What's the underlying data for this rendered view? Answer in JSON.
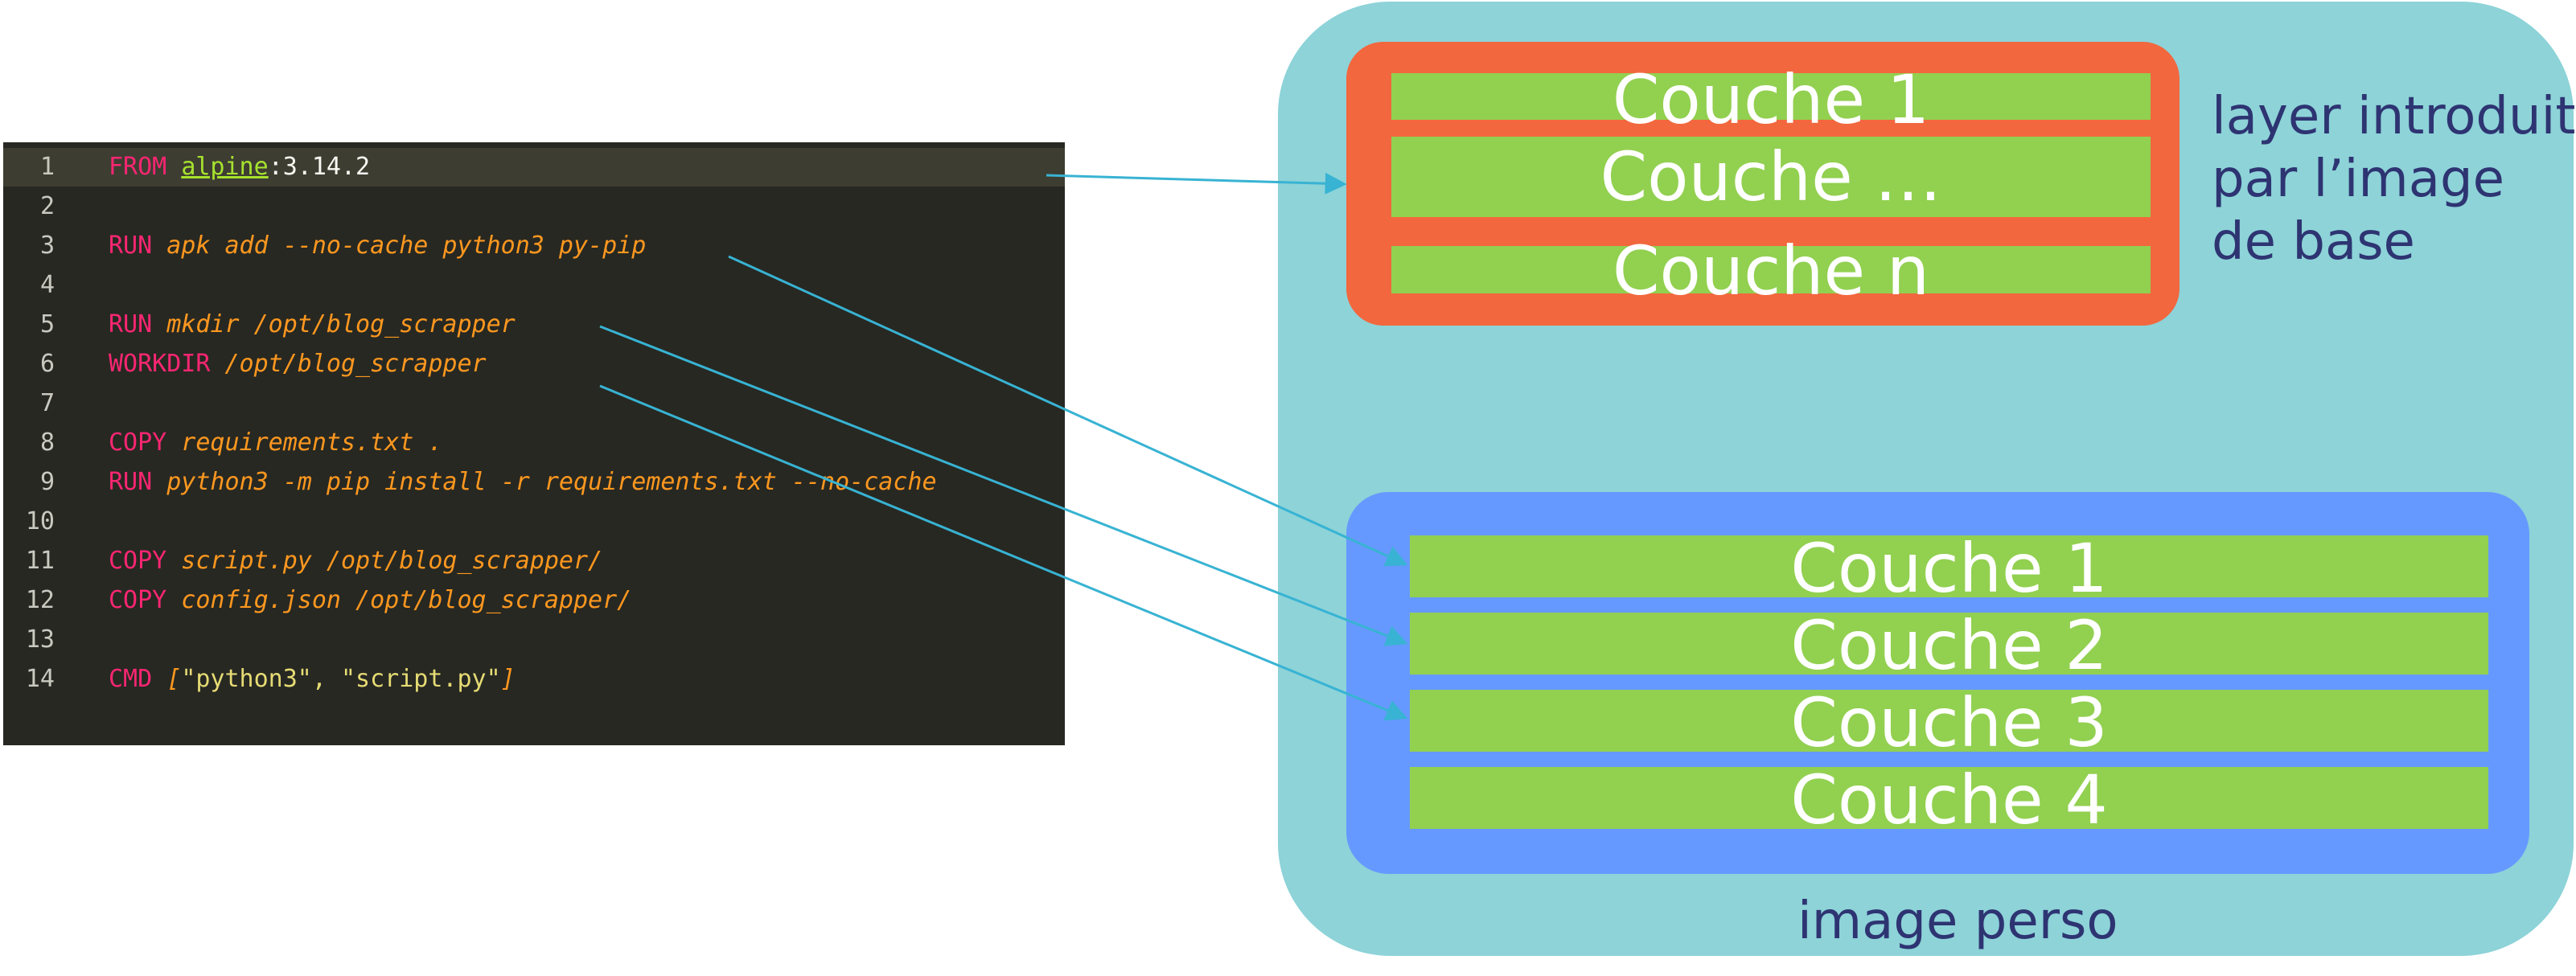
{
  "dockerfile": {
    "lines": [
      {
        "num": "1",
        "tokens": [
          {
            "t": "FROM",
            "c": "kw"
          },
          {
            "t": " ",
            "c": "plain"
          },
          {
            "t": "alpine",
            "c": "img"
          },
          {
            "t": ":3.14.2",
            "c": "plain"
          }
        ]
      },
      {
        "num": "2",
        "tokens": []
      },
      {
        "num": "3",
        "tokens": [
          {
            "t": "RUN",
            "c": "kw"
          },
          {
            "t": " apk add --no-cache python3 py-pip",
            "c": "arg"
          }
        ]
      },
      {
        "num": "4",
        "tokens": []
      },
      {
        "num": "5",
        "tokens": [
          {
            "t": "RUN",
            "c": "kw"
          },
          {
            "t": " mkdir /opt/blog_scrapper",
            "c": "arg"
          }
        ]
      },
      {
        "num": "6",
        "tokens": [
          {
            "t": "WORKDIR",
            "c": "kw"
          },
          {
            "t": " /opt/blog_scrapper",
            "c": "arg"
          }
        ]
      },
      {
        "num": "7",
        "tokens": []
      },
      {
        "num": "8",
        "tokens": [
          {
            "t": "COPY",
            "c": "kw"
          },
          {
            "t": " requirements.txt .",
            "c": "arg"
          }
        ]
      },
      {
        "num": "9",
        "tokens": [
          {
            "t": "RUN",
            "c": "kw"
          },
          {
            "t": " python3 -m pip install -r requirements.txt --no-cache",
            "c": "arg"
          }
        ]
      },
      {
        "num": "10",
        "tokens": []
      },
      {
        "num": "11",
        "tokens": [
          {
            "t": "COPY",
            "c": "kw"
          },
          {
            "t": " script.py /opt/blog_scrapper/",
            "c": "arg"
          }
        ]
      },
      {
        "num": "12",
        "tokens": [
          {
            "t": "COPY",
            "c": "kw"
          },
          {
            "t": " config.json /opt/blog_scrapper/",
            "c": "arg"
          }
        ]
      },
      {
        "num": "13",
        "tokens": []
      },
      {
        "num": "14",
        "tokens": [
          {
            "t": "CMD",
            "c": "kw"
          },
          {
            "t": " [",
            "c": "arg"
          },
          {
            "t": "\"python3\", \"script.py\"",
            "c": "str"
          },
          {
            "t": "]",
            "c": "arg"
          }
        ]
      }
    ]
  },
  "base_image": {
    "layers": [
      "Couche 1",
      "Couche …",
      "Couche n"
    ],
    "note": [
      "layer introduit",
      "par l’image",
      "de base"
    ]
  },
  "custom_image": {
    "layers": [
      "Couche 1",
      "Couche 2",
      "Couche 3",
      "Couche 4"
    ],
    "label": "image perso"
  },
  "colors": {
    "editor_bg": "#272822",
    "image_container": "#8dd3d8",
    "base_image": "#f2673e",
    "custom_image": "#6699ff",
    "layer": "#92d050",
    "arrow": "#38b3d3",
    "annotation_text": "#2e3472"
  }
}
